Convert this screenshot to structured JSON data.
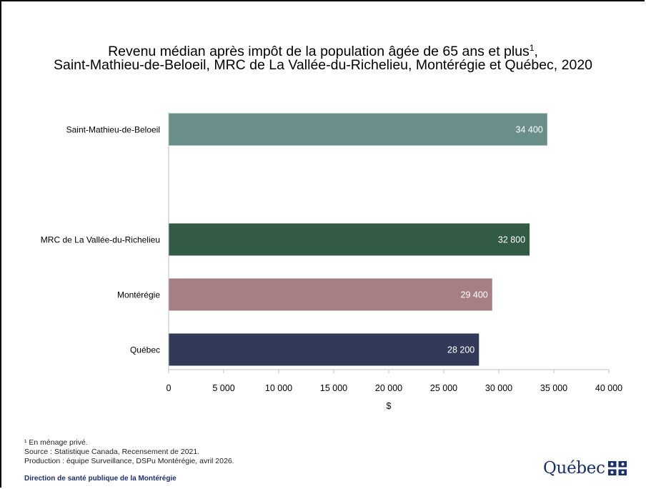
{
  "title_line1": "Revenu médian après impôt de la population âgée de 65 ans et plus",
  "title_footnote_mark": "1",
  "title_line1_end": ",",
  "title_line2": "Saint-Mathieu-de-Beloeil, MRC de La Vallée-du-Richelieu, Montérégie et Québec, 2020",
  "chart_data": {
    "type": "bar",
    "orientation": "horizontal",
    "categories": [
      "Saint-Mathieu-de-Beloeil",
      "MRC de La Vallée-du-Richelieu",
      "Montérégie",
      "Québec"
    ],
    "values": [
      34400,
      32800,
      29400,
      28200
    ],
    "value_labels": [
      "34 400",
      "32 800",
      "29 400",
      "28 200"
    ],
    "colors": [
      "#6a8f8a",
      "#325a45",
      "#a57f84",
      "#323a57"
    ],
    "xlabel": "$",
    "xlim": [
      0,
      40000
    ],
    "xticks": [
      0,
      5000,
      10000,
      15000,
      20000,
      25000,
      30000,
      35000,
      40000
    ],
    "xtick_labels": [
      "0",
      "5 000",
      "10 000",
      "15 000",
      "20 000",
      "25 000",
      "30 000",
      "35 000",
      "40 000"
    ],
    "grid": false
  },
  "notes": [
    "¹ En ménage privé.",
    "Source : Statistique Canada, Recensement de 2021.",
    "Production : équipe Surveillance, DSPu Montérégie, avril 2026."
  ],
  "organization": "Direction de santé publique de la Montérégie",
  "logo_text": "Québec",
  "logo_icon": "fleur-de-lis-flag-icon",
  "logo_color": "#1a2f6b"
}
